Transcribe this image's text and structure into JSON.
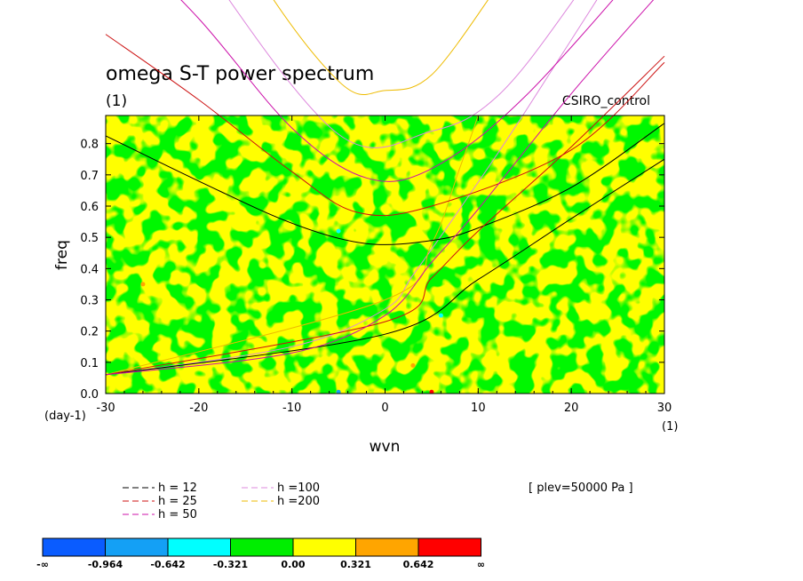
{
  "chart_data": {
    "type": "heatmap",
    "title": "omega S-T power spectrum",
    "subtitle": "(1)",
    "case_label": "CSIRO_control",
    "xlabel": "wvn",
    "ylabel": "freq",
    "x_unit": "(1)",
    "y_unit": "(day-1)",
    "xlim": [
      -30,
      30
    ],
    "ylim": [
      0,
      0.89
    ],
    "x_ticks": [
      "-30",
      "-20",
      "-10",
      "0",
      "10",
      "20",
      "30"
    ],
    "y_ticks": [
      "0.0",
      "0.1",
      "0.2",
      "0.3",
      "0.4",
      "0.5",
      "0.6",
      "0.7",
      "0.8"
    ],
    "annotation": "[ plev=50000 Pa ]",
    "field_description": "noisy field dominated by levels 0.00 to 0.321 (yellow) and -0.321 to 0.00 (green)",
    "legend": [
      {
        "label": "h = 12",
        "color": "#000000"
      },
      {
        "label": "h = 25",
        "color": "#cc1111"
      },
      {
        "label": "h = 50",
        "color": "#cc11aa"
      },
      {
        "label": "h =100",
        "color": "#dd88dd"
      },
      {
        "label": "h =200",
        "color": "#eebb00"
      }
    ],
    "colorbar": {
      "colors": [
        "#0a5cff",
        "#14a0f5",
        "#00ffff",
        "#00ee00",
        "#ffff00",
        "#ffa500",
        "#ff0000"
      ],
      "labels": [
        "-∞",
        "-0.964",
        "-0.642",
        "-0.321",
        "0.00",
        "0.321",
        "0.642",
        "∞"
      ]
    },
    "dispersion_curves": [
      {
        "name": "h = 12",
        "color": "#000000",
        "kelvin": [
          [
            -30,
            0.06
          ],
          [
            0,
            0.19
          ],
          [
            10,
            0.365
          ],
          [
            20,
            0.56
          ],
          [
            30,
            0.75
          ]
        ],
        "wig": [
          [
            -30,
            0.825
          ],
          [
            -20,
            0.68
          ],
          [
            -10,
            0.545
          ],
          [
            -2,
            0.48
          ],
          [
            5,
            0.49
          ],
          [
            10,
            0.53
          ],
          [
            20,
            0.66
          ],
          [
            30,
            0.865
          ]
        ]
      },
      {
        "name": "h = 25",
        "color": "#cc1111",
        "kelvin": [
          [
            -30,
            0.06
          ],
          [
            0,
            0.23
          ],
          [
            5,
            0.37
          ],
          [
            10,
            0.52
          ],
          [
            20,
            0.79
          ],
          [
            30,
            1.08
          ]
        ],
        "wig": [
          [
            -30,
            1.15
          ],
          [
            -20,
            0.94
          ],
          [
            -10,
            0.71
          ],
          [
            -3,
            0.58
          ],
          [
            5,
            0.6
          ],
          [
            20,
            0.78
          ],
          [
            30,
            1.06
          ]
        ]
      },
      {
        "name": "h = 50",
        "color": "#cc11aa",
        "kelvin": [
          [
            -30,
            0.06
          ],
          [
            -10,
            0.13
          ],
          [
            0,
            0.25
          ],
          [
            5,
            0.42
          ],
          [
            10,
            0.59
          ],
          [
            20,
            0.96
          ],
          [
            30,
            1.3
          ]
        ],
        "wig": [
          [
            -30,
            1.5
          ],
          [
            -20,
            1.2
          ],
          [
            -10,
            0.85
          ],
          [
            -2,
            0.69
          ],
          [
            5,
            0.72
          ],
          [
            15,
            0.95
          ],
          [
            30,
            1.45
          ]
        ]
      }
    ],
    "dispersion_curves_partial": [
      {
        "name": "h =100",
        "color": "#dd88dd",
        "kelvin": [
          [
            -30,
            0.06
          ],
          [
            -10,
            0.15
          ],
          [
            0,
            0.27
          ],
          [
            3,
            0.38
          ],
          [
            8,
            0.59
          ],
          [
            15,
            0.9
          ],
          [
            30,
            1.6
          ]
        ],
        "wig": [
          [
            -30,
            1.9
          ],
          [
            -20,
            1.4
          ],
          [
            -5,
            0.83
          ],
          [
            5,
            0.84
          ],
          [
            12,
            0.95
          ],
          [
            20,
            1.25
          ],
          [
            30,
            1.7
          ]
        ]
      },
      {
        "name": "h =200",
        "color": "#eebb00",
        "kelvin": [
          [
            -30,
            0.06
          ],
          [
            0,
            0.3
          ],
          [
            5,
            0.48
          ],
          [
            8,
            0.72
          ],
          [
            10,
            0.89
          ]
        ],
        "wig": [
          [
            -30,
            2.2
          ],
          [
            -15,
            1.4
          ],
          [
            -5,
            1.0
          ],
          [
            0,
            0.97
          ],
          [
            5,
            1.02
          ],
          [
            12,
            1.3
          ]
        ]
      }
    ]
  }
}
